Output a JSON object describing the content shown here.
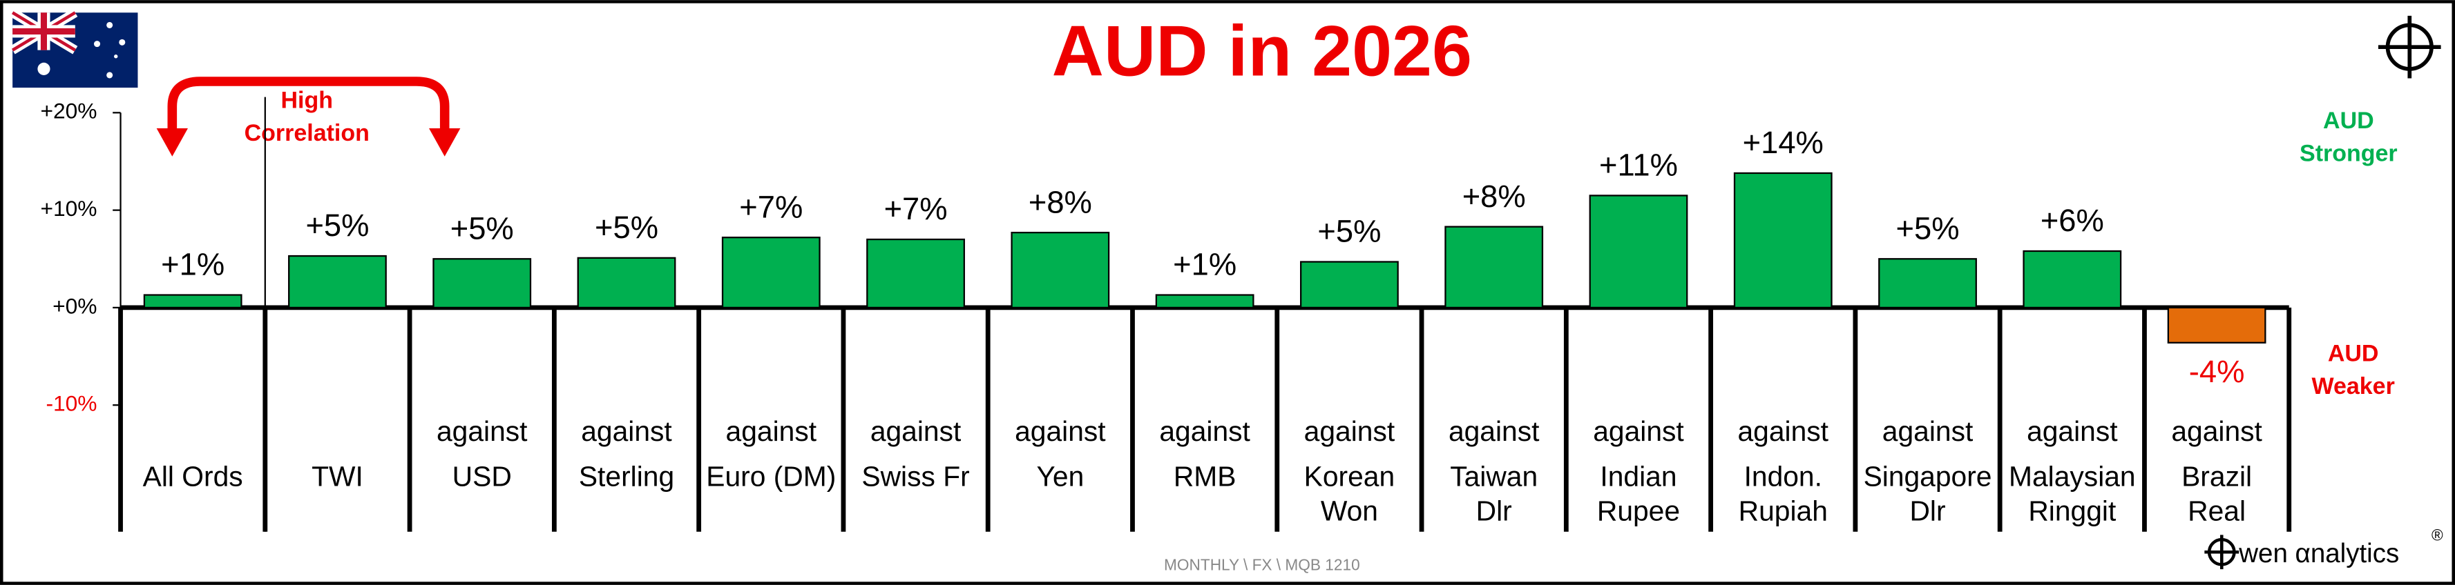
{
  "chart_data": {
    "type": "bar",
    "title": "AUD in 2026",
    "annotation": [
      "High",
      "Correlation"
    ],
    "upper_note": [
      "AUD",
      "Stronger"
    ],
    "lower_note": [
      "AUD",
      "Weaker"
    ],
    "footer": "MONTHLY \\ FX  \\ MQB 1210",
    "logo": "wen αnalytics",
    "logo_mark": "®",
    "categories": [
      [
        "All Ords"
      ],
      [
        "TWI"
      ],
      [
        "against",
        "USD"
      ],
      [
        "against",
        "Sterling"
      ],
      [
        "against",
        "Euro (DM)"
      ],
      [
        "against",
        "Swiss Fr"
      ],
      [
        "against",
        "Yen"
      ],
      [
        "against",
        "RMB"
      ],
      [
        "against",
        "Korean",
        "Won"
      ],
      [
        "against",
        "Taiwan",
        "Dlr"
      ],
      [
        "against",
        "Indian",
        "Rupee"
      ],
      [
        "against",
        "Indon.",
        "Rupiah"
      ],
      [
        "against",
        "Singapore",
        "Dlr"
      ],
      [
        "against",
        "Malaysian",
        "Ringgit"
      ],
      [
        "against",
        "Brazil",
        "Real"
      ]
    ],
    "values": [
      1.3,
      5.3,
      5.0,
      5.1,
      7.2,
      7.0,
      7.7,
      1.3,
      4.7,
      8.3,
      11.5,
      13.8,
      5.0,
      5.8,
      -3.6
    ],
    "value_labels": [
      "+1%",
      "+5%",
      "+5%",
      "+5%",
      "+7%",
      "+7%",
      "+8%",
      "+1%",
      "+5%",
      "+8%",
      "+11%",
      "+14%",
      "+5%",
      "+6%",
      "-4%"
    ],
    "color": "#00b050",
    "negative_color": "#e46c0a",
    "ylim": [
      -10,
      20
    ],
    "yticks": [
      {
        "value": 20,
        "label": "+20%"
      },
      {
        "value": 10,
        "label": "+10%"
      },
      {
        "value": 0,
        "label": "+0%"
      },
      {
        "value": -10,
        "label": "-10%"
      }
    ]
  }
}
